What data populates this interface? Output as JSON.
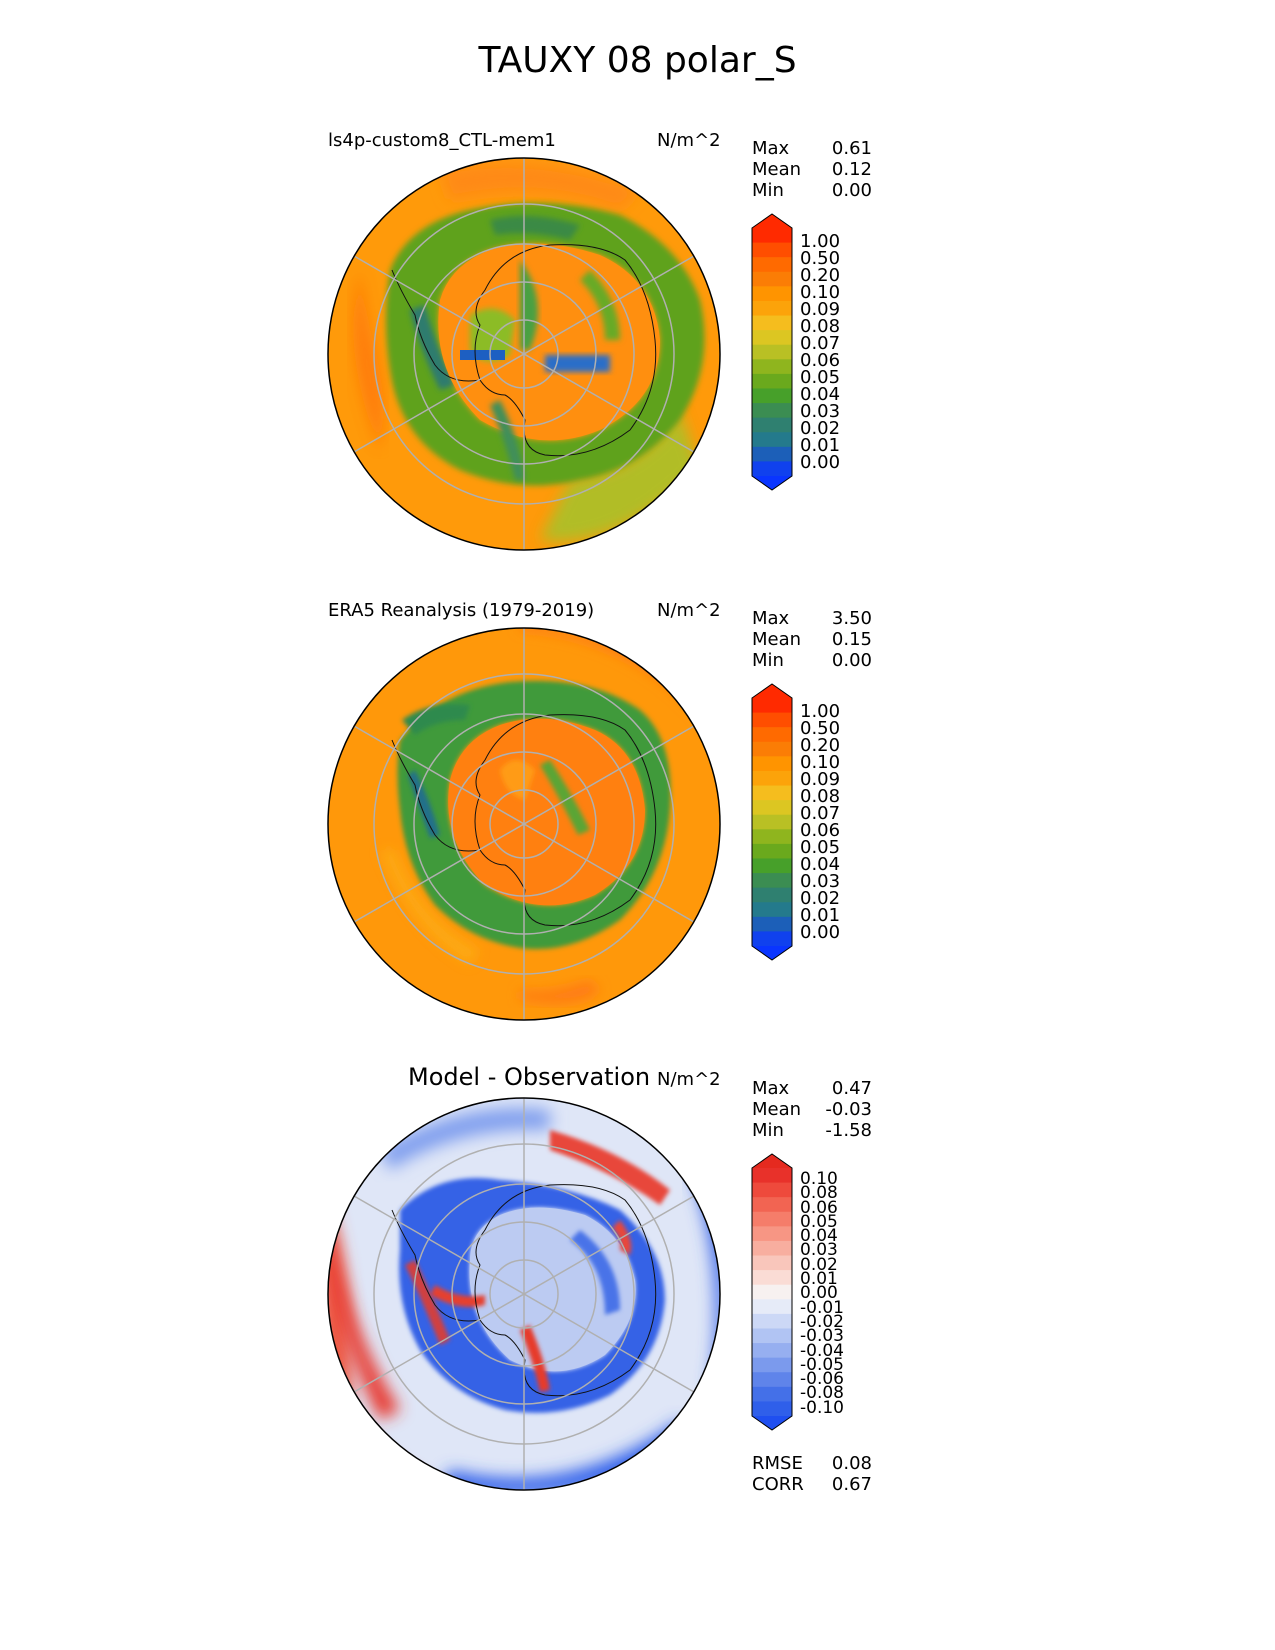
{
  "figure": {
    "title": "TAUXY 08 polar_S"
  },
  "chart_data": [
    {
      "type": "heatmap",
      "projection": "south polar stereographic",
      "title": "ls4p-custom8_CTL-mem1",
      "units": "N/m^2",
      "stats": [
        {
          "label": "Max",
          "value": "0.61"
        },
        {
          "label": "Mean",
          "value": "0.12"
        },
        {
          "label": "Min",
          "value": "0.00"
        }
      ],
      "colorbar": {
        "extend": "both",
        "ticks": [
          "1.00",
          "0.50",
          "0.20",
          "0.10",
          "0.09",
          "0.08",
          "0.07",
          "0.06",
          "0.05",
          "0.04",
          "0.03",
          "0.02",
          "0.01",
          "0.00"
        ],
        "colors": [
          "#ff2a00",
          "#ff4e00",
          "#ff6a00",
          "#fb7d05",
          "#ff9400",
          "#fca30a",
          "#f5bd1e",
          "#dcc622",
          "#b9c024",
          "#8fb51e",
          "#6aa91d",
          "#47a02a",
          "#3b8d52",
          "#2f8070",
          "#247a8c",
          "#1c5fb8",
          "#1041ee"
        ],
        "under_color": "#0a35ff",
        "over_color": "#ff2a00"
      }
    },
    {
      "type": "heatmap",
      "projection": "south polar stereographic",
      "title": "ERA5 Reanalysis (1979-2019)",
      "units": "N/m^2",
      "stats": [
        {
          "label": "Max",
          "value": "3.50"
        },
        {
          "label": "Mean",
          "value": "0.15"
        },
        {
          "label": "Min",
          "value": "0.00"
        }
      ],
      "colorbar": {
        "extend": "both",
        "ticks": [
          "1.00",
          "0.50",
          "0.20",
          "0.10",
          "0.09",
          "0.08",
          "0.07",
          "0.06",
          "0.05",
          "0.04",
          "0.03",
          "0.02",
          "0.01",
          "0.00"
        ],
        "colors": [
          "#ff2a00",
          "#ff4e00",
          "#ff6a00",
          "#fb7d05",
          "#ff9400",
          "#fca30a",
          "#f5bd1e",
          "#dcc622",
          "#b9c024",
          "#8fb51e",
          "#6aa91d",
          "#47a02a",
          "#3b8d52",
          "#2f8070",
          "#247a8c",
          "#1c5fb8",
          "#1041ee"
        ],
        "under_color": "#0a35ff",
        "over_color": "#ff2a00"
      }
    },
    {
      "type": "heatmap",
      "projection": "south polar stereographic",
      "title": "Model - Observation",
      "units": "N/m^2",
      "stats": [
        {
          "label": "Max",
          "value": "0.47"
        },
        {
          "label": "Mean",
          "value": "-0.03"
        },
        {
          "label": "Min",
          "value": "-1.58"
        }
      ],
      "colorbar": {
        "extend": "both",
        "ticks": [
          "0.10",
          "0.08",
          "0.06",
          "0.05",
          "0.04",
          "0.03",
          "0.02",
          "0.01",
          "0.00",
          "-0.01",
          "-0.02",
          "-0.03",
          "-0.04",
          "-0.05",
          "-0.06",
          "-0.08",
          "-0.10"
        ],
        "colors": [
          "#e8312a",
          "#ee4a3c",
          "#f26452",
          "#f57d6a",
          "#f79684",
          "#f8ae9f",
          "#f9c6bb",
          "#fadcd5",
          "#f7f1f0",
          "#e6ebf8",
          "#ccd8f6",
          "#b1c4f3",
          "#96aff0",
          "#7b9aed",
          "#5f84ea",
          "#4470e8",
          "#2f5fea"
        ],
        "under_color": "#1f4ff0",
        "over_color": "#e52a1f"
      },
      "metrics": [
        {
          "label": "RMSE",
          "value": "0.08"
        },
        {
          "label": "CORR",
          "value": "0.67"
        }
      ]
    }
  ]
}
